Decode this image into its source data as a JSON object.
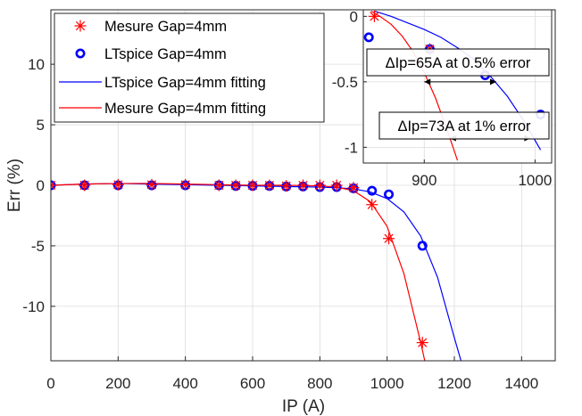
{
  "chart_data": [
    {
      "type": "scatter",
      "title": "",
      "xlabel": "IP (A)",
      "ylabel": "Err (%)",
      "xlim": [
        0,
        1500
      ],
      "ylim": [
        -14.5,
        14.5
      ],
      "xticks": [
        "0",
        "200",
        "400",
        "600",
        "800",
        "1000",
        "1200",
        "1400"
      ],
      "yticks": [
        "10",
        "5",
        "0",
        "-5",
        "-10"
      ],
      "grid": true,
      "legend_position": "top-left",
      "series": [
        {
          "name": "Mesure Gap=4mm",
          "marker": "asterisk",
          "color": "#ff0000",
          "x": [
            0,
            100,
            200,
            300,
            400,
            500,
            550,
            600,
            650,
            700,
            750,
            800,
            850,
            900,
            955,
            1005,
            1105
          ],
          "y": [
            0,
            0,
            0.05,
            0.05,
            0.05,
            0,
            0,
            0,
            0,
            -0.05,
            0,
            0,
            0,
            -0.2,
            -1.6,
            -4.4,
            -13
          ]
        },
        {
          "name": "LTspice Gap=4mm",
          "marker": "circle",
          "color": "#0000ff",
          "x": [
            0,
            100,
            200,
            300,
            400,
            500,
            550,
            600,
            650,
            700,
            750,
            800,
            850,
            900,
            955,
            1005,
            1105
          ],
          "y": [
            0,
            0,
            0,
            0,
            0,
            0,
            -0.05,
            -0.05,
            -0.05,
            -0.1,
            -0.1,
            -0.15,
            -0.15,
            -0.25,
            -0.45,
            -0.75,
            -5
          ]
        },
        {
          "name": "LTspice Gap=4mm fitting",
          "type": "line",
          "color": "#0000ff",
          "x": [
            0,
            100,
            200,
            300,
            400,
            500,
            600,
            700,
            800,
            850,
            900,
            950,
            1000,
            1050,
            1100,
            1150,
            1200,
            1225
          ],
          "y": [
            0,
            0.1,
            0.15,
            0.1,
            0.05,
            0,
            -0.05,
            -0.1,
            -0.15,
            -0.2,
            -0.3,
            -0.55,
            -1.1,
            -2.2,
            -4.2,
            -7.6,
            -12.6,
            -15
          ]
        },
        {
          "name": "Mesure Gap=4mm fitting",
          "type": "line",
          "color": "#ff0000",
          "x": [
            0,
            100,
            200,
            300,
            400,
            500,
            600,
            700,
            800,
            850,
            900,
            950,
            1000,
            1050,
            1100,
            1120
          ],
          "y": [
            0,
            0.1,
            0.15,
            0.15,
            0.1,
            0.05,
            0,
            0,
            -0.05,
            -0.15,
            -0.45,
            -1.35,
            -3.4,
            -7.3,
            -13.0,
            -15.5
          ]
        }
      ]
    },
    {
      "type": "scatter",
      "title": "",
      "role": "inset",
      "xlim": [
        845,
        1015
      ],
      "ylim": [
        -1.12,
        0.05
      ],
      "xticks": [
        "900",
        "1000"
      ],
      "yticks": [
        "0",
        "-0.5",
        "-1"
      ],
      "grid": true,
      "series": [
        {
          "name": "Mesure Gap=4mm",
          "marker": "asterisk",
          "color": "#ff0000",
          "x": [
            855,
            905
          ],
          "y": [
            0,
            -0.25
          ]
        },
        {
          "name": "LTspice Gap=4mm",
          "marker": "circle",
          "color": "#0000ff",
          "x": [
            850,
            905,
            955,
            1005
          ],
          "y": [
            -0.16,
            -0.25,
            -0.45,
            -0.75
          ]
        },
        {
          "name": "LTspice Gap=4mm fitting",
          "type": "line",
          "color": "#0000ff",
          "x": [
            855,
            870,
            885,
            900,
            915,
            930,
            945,
            960,
            975,
            990,
            1005
          ],
          "y": [
            0.04,
            0.0,
            -0.05,
            -0.1,
            -0.16,
            -0.24,
            -0.33,
            -0.46,
            -0.61,
            -0.8,
            -1.02
          ]
        },
        {
          "name": "Mesure Gap=4mm fitting",
          "type": "line",
          "color": "#ff0000",
          "x": [
            852,
            860,
            870,
            880,
            890,
            900,
            910,
            920,
            930
          ],
          "y": [
            0.04,
            0.0,
            -0.06,
            -0.15,
            -0.27,
            -0.43,
            -0.62,
            -0.85,
            -1.1
          ]
        }
      ],
      "annotations": [
        {
          "text": "ΔIp=65A at 0.5% error",
          "from_x": 900,
          "to_x": 965,
          "y": -0.5
        },
        {
          "text": "ΔIp=73A at 1% error",
          "from_x": 923,
          "to_x": 996,
          "y": -0.93
        }
      ]
    }
  ]
}
